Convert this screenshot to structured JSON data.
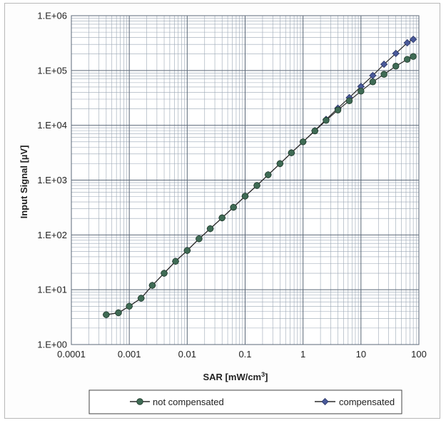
{
  "chart_data": {
    "type": "line",
    "x_scale": "log",
    "y_scale": "log",
    "xlabel_main": "SAR [mW/cm",
    "xlabel_sup": "3",
    "xlabel_tail": "]",
    "ylabel": "Input Signal [µV]",
    "xlim": [
      0.0001,
      100
    ],
    "ylim": [
      1,
      1000000
    ],
    "x_ticks": [
      {
        "value": 0.0001,
        "label": "0.0001"
      },
      {
        "value": 0.001,
        "label": "0.001"
      },
      {
        "value": 0.01,
        "label": "0.01"
      },
      {
        "value": 0.1,
        "label": "0.1"
      },
      {
        "value": 1,
        "label": "1"
      },
      {
        "value": 10,
        "label": "10"
      },
      {
        "value": 100,
        "label": "100"
      }
    ],
    "y_ticks": [
      {
        "value": 1,
        "label": "1.E+00"
      },
      {
        "value": 10,
        "label": "1.E+01"
      },
      {
        "value": 100,
        "label": "1.E+02"
      },
      {
        "value": 1000,
        "label": "1.E+03"
      },
      {
        "value": 10000,
        "label": "1.E+04"
      },
      {
        "value": 100000,
        "label": "1.E+05"
      },
      {
        "value": 1000000,
        "label": "1.E+06"
      }
    ],
    "grid": "major and minor",
    "legend_position": "bottom",
    "series": [
      {
        "name": "not compensated",
        "color": "#3f6b55",
        "marker": "circle",
        "points": [
          [
            0.0004,
            3.5
          ],
          [
            0.00065,
            3.8
          ],
          [
            0.001,
            5.0
          ],
          [
            0.0016,
            7.0
          ],
          [
            0.0025,
            12
          ],
          [
            0.004,
            20
          ],
          [
            0.0063,
            33
          ],
          [
            0.01,
            52
          ],
          [
            0.016,
            85
          ],
          [
            0.025,
            130
          ],
          [
            0.04,
            205
          ],
          [
            0.063,
            320
          ],
          [
            0.1,
            510
          ],
          [
            0.16,
            800
          ],
          [
            0.25,
            1250
          ],
          [
            0.4,
            2000
          ],
          [
            0.63,
            3150
          ],
          [
            1,
            5000
          ],
          [
            1.6,
            7900
          ],
          [
            2.5,
            12300
          ],
          [
            4,
            19000
          ],
          [
            6.3,
            28000
          ],
          [
            10,
            42000
          ],
          [
            16,
            62000
          ],
          [
            25,
            85000
          ],
          [
            40,
            120000
          ],
          [
            63,
            160000
          ],
          [
            80,
            180000
          ]
        ]
      },
      {
        "name": "compensated",
        "color": "#4a5a9a",
        "marker": "diamond",
        "points": [
          [
            0.0004,
            3.5
          ],
          [
            0.00065,
            3.8
          ],
          [
            0.001,
            5.0
          ],
          [
            0.0016,
            7.0
          ],
          [
            0.0025,
            12
          ],
          [
            0.004,
            20
          ],
          [
            0.0063,
            33
          ],
          [
            0.01,
            52
          ],
          [
            0.016,
            85
          ],
          [
            0.025,
            130
          ],
          [
            0.04,
            205
          ],
          [
            0.063,
            320
          ],
          [
            0.1,
            510
          ],
          [
            0.16,
            800
          ],
          [
            0.25,
            1250
          ],
          [
            0.4,
            2000
          ],
          [
            0.63,
            3150
          ],
          [
            1,
            5000
          ],
          [
            1.6,
            8000
          ],
          [
            2.5,
            12800
          ],
          [
            4,
            20500
          ],
          [
            6.3,
            32000
          ],
          [
            10,
            51000
          ],
          [
            16,
            81000
          ],
          [
            25,
            130000
          ],
          [
            40,
            205000
          ],
          [
            63,
            320000
          ],
          [
            80,
            370000
          ]
        ]
      }
    ]
  }
}
